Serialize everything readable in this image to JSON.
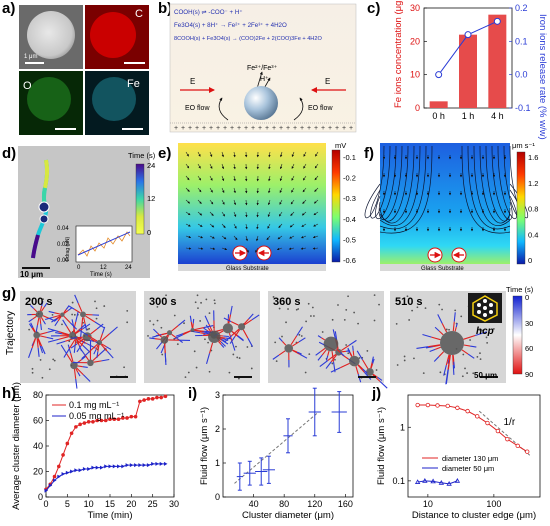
{
  "panels": {
    "a": {
      "letter": "a)",
      "channels": [
        "C",
        "O",
        "Fe"
      ],
      "scalebar": "1 μm",
      "colors": {
        "sem": "#6a6a6a",
        "C": "#b00000",
        "O": "#0a4d0a",
        "Fe": "#0b4b56"
      }
    },
    "b": {
      "letter": "b)",
      "eq1": "COOH(s) ⇌ -COO⁻ + H⁺",
      "eq2": "Fe3O4(s) + 8H⁺ → Fe²⁺ + 2Fe³⁺ + 4H2O",
      "eq3": "8COOH(s) + Fe3O4(s) → (COO)2Fe + 2(COO)3Fe + 4H2O",
      "ions": "Fe²⁺/Fe³⁺",
      "h_ion": "H⁺",
      "field_left": "E",
      "field_right": "E",
      "eo_left": "EO flow",
      "eo_right": "EO flow"
    },
    "c": {
      "letter": "c)"
    },
    "d": {
      "letter": "d)",
      "colorbar_title": "Time (s)",
      "colorbar_ticks": [
        "24",
        "12",
        "0"
      ],
      "scalebar": "10 μm",
      "inset_ylabel": "Fdrag (pN)",
      "inset_xlabel": "Time (s)",
      "inset_yticks": [
        "0.04",
        "0.02",
        "0.00"
      ],
      "inset_xticks": [
        "0",
        "12",
        "24"
      ]
    },
    "e": {
      "letter": "e)",
      "unit": "mV",
      "colorbar_ticks": [
        "-0.1",
        "-0.2",
        "-0.3",
        "-0.4",
        "-0.5",
        "-0.6"
      ],
      "substrate": "Glass Substrate"
    },
    "f": {
      "letter": "f)",
      "unit": "μm s⁻¹",
      "colorbar_ticks": [
        "1.6",
        "1.2",
        "0.8",
        "0.4",
        "0"
      ],
      "substrate": "Glass Substrate"
    },
    "g": {
      "letter": "g)",
      "row_label": "Trajectory",
      "frames": [
        "200 s",
        "300 s",
        "360 s",
        "510 s"
      ],
      "hcp": "hcp",
      "scalebar": "50 μm",
      "colorbar_title": "Time (s)",
      "colorbar_ticks": [
        "0",
        "30",
        "60",
        "90"
      ]
    },
    "h": {
      "letter": "h)"
    },
    "i": {
      "letter": "i)"
    },
    "j": {
      "letter": "j)",
      "annotation": "1/r"
    }
  },
  "chart_data": [
    {
      "id": "c",
      "type": "bar",
      "categories": [
        "0 h",
        "1 h",
        "4 h"
      ],
      "series": [
        {
          "name": "Fe ions concentration",
          "axis": "left",
          "type": "bar",
          "values": [
            2,
            22,
            28
          ],
          "color": "#e64b4b"
        },
        {
          "name": "Iron ions release rate",
          "axis": "right",
          "type": "line",
          "values": [
            0.0,
            0.12,
            0.16
          ],
          "color": "#2a3cd6"
        }
      ],
      "ylabel": "Fe ions concentration (μg L⁻¹)",
      "ylabel_right": "Iron ions release rate (% w/w)",
      "ylim": [
        0,
        30
      ],
      "ylim_right": [
        -0.1,
        0.2
      ],
      "yticks": [
        0,
        10,
        20,
        30
      ],
      "yticks_right": [
        -0.1,
        0.0,
        0.1,
        0.2
      ]
    },
    {
      "id": "h",
      "type": "line",
      "series": [
        {
          "name": "0.1 mg mL⁻¹",
          "color": "#e02424",
          "marker": "circle",
          "x": [
            0,
            1,
            2,
            3,
            4,
            5,
            6,
            7,
            8,
            9,
            10,
            11,
            12,
            13,
            14,
            15,
            16,
            17,
            18,
            19,
            20,
            21,
            22,
            23,
            24,
            25,
            26,
            27,
            28
          ],
          "y": [
            6,
            10,
            16,
            24,
            33,
            42,
            50,
            55,
            57,
            58,
            59,
            59,
            60,
            60,
            60,
            61,
            61,
            61,
            62,
            62,
            63,
            63,
            75,
            76,
            77,
            77,
            78,
            78,
            79
          ]
        },
        {
          "name": "0.05 mg mL⁻¹",
          "color": "#1c22c8",
          "marker": "triangle",
          "x": [
            0,
            1,
            2,
            3,
            4,
            5,
            6,
            7,
            8,
            9,
            10,
            11,
            12,
            13,
            14,
            15,
            16,
            17,
            18,
            19,
            20,
            21,
            22,
            23,
            24,
            25,
            26,
            27,
            28
          ],
          "y": [
            5,
            9,
            13,
            16,
            18,
            19,
            20,
            21,
            21,
            22,
            22,
            23,
            23,
            23,
            24,
            24,
            24,
            24,
            24,
            25,
            25,
            25,
            25,
            25,
            25,
            26,
            26,
            26,
            26
          ]
        }
      ],
      "xlabel": "Time (min)",
      "ylabel": "Average cluster diameter (μm)",
      "xlim": [
        0,
        30
      ],
      "ylim": [
        0,
        80
      ],
      "xticks": [
        0,
        5,
        10,
        15,
        20,
        25,
        30
      ],
      "yticks": [
        0,
        20,
        40,
        60,
        80
      ]
    },
    {
      "id": "i",
      "type": "scatter",
      "series": [
        {
          "color": "#2a3cd6",
          "x": [
            22,
            35,
            50,
            60,
            85,
            120,
            152
          ],
          "y": [
            0.6,
            0.7,
            0.75,
            0.8,
            1.8,
            2.5,
            2.5
          ],
          "xerr": [
            4,
            8,
            8,
            8,
            6,
            8,
            10
          ],
          "yerr": [
            0.4,
            0.35,
            0.4,
            0.4,
            0.5,
            0.7,
            0.6
          ]
        }
      ],
      "fit_line": {
        "x": [
          15,
          125
        ],
        "y": [
          0.4,
          2.5
        ]
      },
      "xlabel": "Cluster diameter (μm)",
      "ylabel": "Fluid flow (μm s⁻¹)",
      "xlim": [
        0,
        170
      ],
      "ylim": [
        0,
        3
      ],
      "xticks": [
        40,
        80,
        120,
        160
      ],
      "yticks": [
        0,
        1,
        2,
        3
      ]
    },
    {
      "id": "j",
      "type": "line",
      "log_x": true,
      "log_y": true,
      "series": [
        {
          "name": "diameter 130 μm",
          "color": "#e02424",
          "marker": "circle",
          "x": [
            7,
            10,
            14,
            20,
            28,
            40,
            56,
            80,
            115,
            160,
            230,
            320
          ],
          "y": [
            2.6,
            2.6,
            2.55,
            2.5,
            2.3,
            2.0,
            1.6,
            1.2,
            0.85,
            0.6,
            0.45,
            0.35
          ]
        },
        {
          "name": "diameter 50 μm",
          "color": "#1c22c8",
          "marker": "triangle",
          "x": [
            7,
            9,
            12,
            16,
            21,
            28
          ],
          "y": [
            0.095,
            0.1,
            0.098,
            0.092,
            0.088,
            0.1
          ]
        }
      ],
      "fit_line": {
        "x": [
          60,
          350
        ],
        "y": [
          2.0,
          0.3
        ]
      },
      "xlabel": "Distance to cluster edge (μm)",
      "ylabel": "Fluid flow (μm s⁻¹)",
      "xlim": [
        5,
        500
      ],
      "ylim": [
        0.05,
        4
      ],
      "xtick_labels": [
        "10",
        "100"
      ],
      "ytick_labels": [
        "0.1",
        "1"
      ]
    }
  ]
}
